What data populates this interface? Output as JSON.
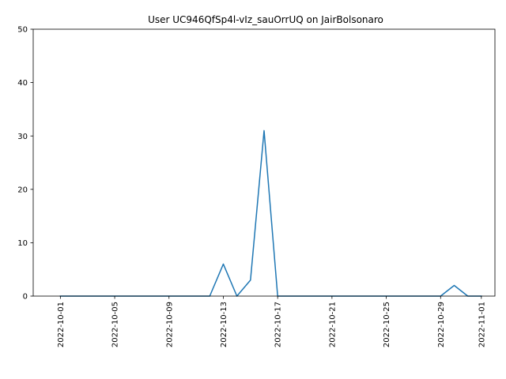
{
  "chart_data": {
    "type": "line",
    "title": "User UC946QfSp4l-vIz_sauOrrUQ on JairBolsonaro",
    "xlabel": "",
    "ylabel": "",
    "x": [
      "2022-10-01",
      "2022-10-02",
      "2022-10-03",
      "2022-10-04",
      "2022-10-05",
      "2022-10-06",
      "2022-10-07",
      "2022-10-08",
      "2022-10-09",
      "2022-10-10",
      "2022-10-11",
      "2022-10-12",
      "2022-10-13",
      "2022-10-14",
      "2022-10-15",
      "2022-10-16",
      "2022-10-17",
      "2022-10-18",
      "2022-10-19",
      "2022-10-20",
      "2022-10-21",
      "2022-10-22",
      "2022-10-23",
      "2022-10-24",
      "2022-10-25",
      "2022-10-26",
      "2022-10-27",
      "2022-10-28",
      "2022-10-29",
      "2022-10-30",
      "2022-10-31",
      "2022-11-01"
    ],
    "series": [
      {
        "values": [
          0,
          0,
          0,
          0,
          0,
          0,
          0,
          0,
          0,
          0,
          0,
          0,
          6,
          0,
          3,
          31,
          0,
          0,
          0,
          0,
          0,
          0,
          0,
          0,
          0,
          0,
          0,
          0,
          0,
          2,
          0,
          0
        ],
        "color": "#1f77b4"
      }
    ],
    "x_ticks": [
      "2022-10-01",
      "2022-10-05",
      "2022-10-09",
      "2022-10-13",
      "2022-10-17",
      "2022-10-21",
      "2022-10-25",
      "2022-10-29",
      "2022-11-01"
    ],
    "y_ticks": [
      0,
      10,
      20,
      30,
      40,
      50
    ],
    "xlim": [
      "2022-09-29",
      "2022-11-02"
    ],
    "ylim": [
      0,
      50
    ],
    "grid": false,
    "legend": "none"
  }
}
